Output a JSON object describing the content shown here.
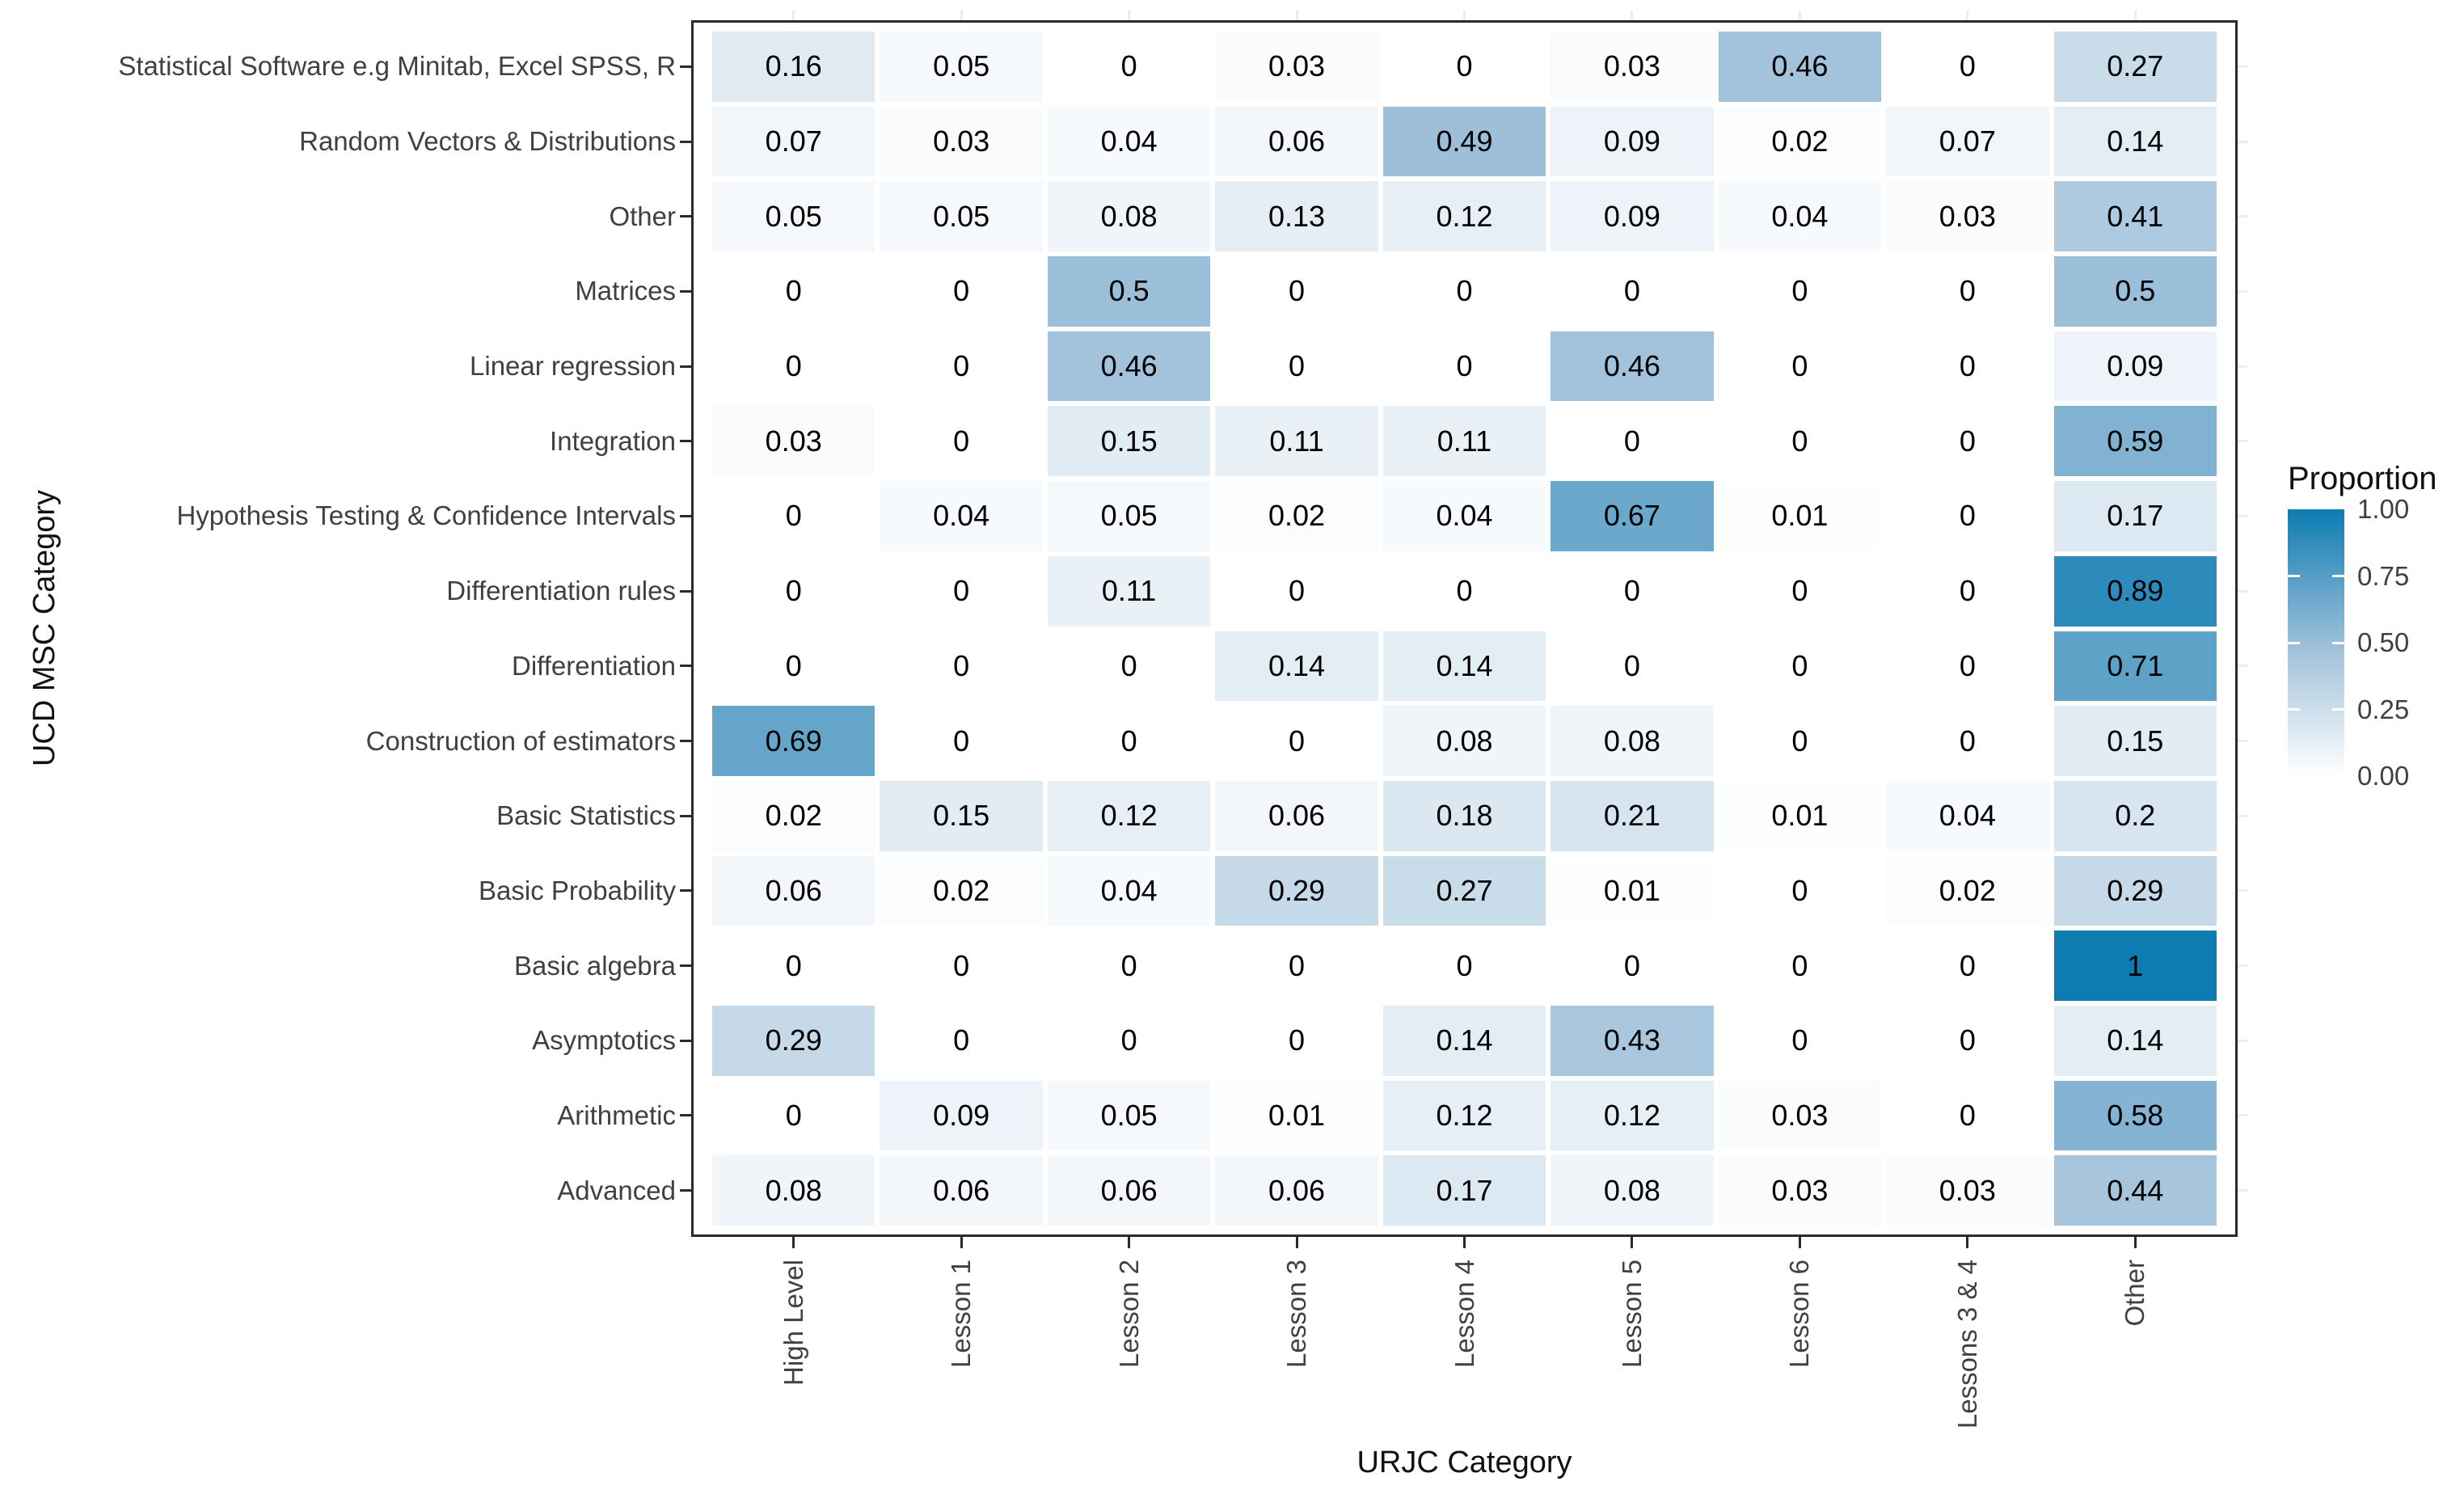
{
  "axes": {
    "x_title": "URJC Category",
    "y_title": "UCD MSC Category"
  },
  "legend": {
    "title": "Proportion",
    "tick_labels": [
      "1.00",
      "0.75",
      "0.50",
      "0.25",
      "0.00"
    ],
    "color_high": "#0D7CB1",
    "color_mid": "#9BBED9",
    "color_low": "#FFFFFF"
  },
  "chart_data": {
    "type": "heatmap",
    "title": "",
    "xlabel": "URJC Category",
    "ylabel": "UCD MSC Category",
    "value_range": [
      0,
      1
    ],
    "legend_title": "Proportion",
    "legend_ticks": [
      1.0,
      0.75,
      0.5,
      0.25,
      0.0
    ],
    "x_categories": [
      "High Level",
      "Lesson 1",
      "Lesson 2",
      "Lesson 3",
      "Lesson 4",
      "Lesson 5",
      "Lesson 6",
      "Lessons 3 & 4",
      "Other"
    ],
    "y_categories": [
      "Statistical Software e.g Minitab, Excel SPSS, R",
      "Random Vectors & Distributions",
      "Other",
      "Matrices",
      "Linear regression",
      "Integration",
      "Hypothesis Testing & Confidence Intervals",
      "Differentiation rules",
      "Differentiation",
      "Construction of estimators",
      "Basic Statistics",
      "Basic Probability",
      "Basic algebra",
      "Asymptotics",
      "Arithmetic",
      "Advanced"
    ],
    "values": [
      [
        0.16,
        0.05,
        0,
        0.03,
        0,
        0.03,
        0.46,
        0,
        0.27
      ],
      [
        0.07,
        0.03,
        0.04,
        0.06,
        0.49,
        0.09,
        0.02,
        0.07,
        0.14
      ],
      [
        0.05,
        0.05,
        0.08,
        0.13,
        0.12,
        0.09,
        0.04,
        0.03,
        0.41
      ],
      [
        0,
        0,
        0.5,
        0,
        0,
        0,
        0,
        0,
        0.5
      ],
      [
        0,
        0,
        0.46,
        0,
        0,
        0.46,
        0,
        0,
        0.09
      ],
      [
        0.03,
        0,
        0.15,
        0.11,
        0.11,
        0,
        0,
        0,
        0.59
      ],
      [
        0,
        0.04,
        0.05,
        0.02,
        0.04,
        0.67,
        0.01,
        0,
        0.17
      ],
      [
        0,
        0,
        0.11,
        0,
        0,
        0,
        0,
        0,
        0.89
      ],
      [
        0,
        0,
        0,
        0.14,
        0.14,
        0,
        0,
        0,
        0.71
      ],
      [
        0.69,
        0,
        0,
        0,
        0.08,
        0.08,
        0,
        0,
        0.15
      ],
      [
        0.02,
        0.15,
        0.12,
        0.06,
        0.18,
        0.21,
        0.01,
        0.04,
        0.2
      ],
      [
        0.06,
        0.02,
        0.04,
        0.29,
        0.27,
        0.01,
        0,
        0.02,
        0.29
      ],
      [
        0,
        0,
        0,
        0,
        0,
        0,
        0,
        0,
        1
      ],
      [
        0.29,
        0,
        0,
        0,
        0.14,
        0.43,
        0,
        0,
        0.14
      ],
      [
        0,
        0.09,
        0.05,
        0.01,
        0.12,
        0.12,
        0.03,
        0,
        0.58
      ],
      [
        0.08,
        0.06,
        0.06,
        0.06,
        0.17,
        0.08,
        0.03,
        0.03,
        0.44
      ]
    ]
  }
}
